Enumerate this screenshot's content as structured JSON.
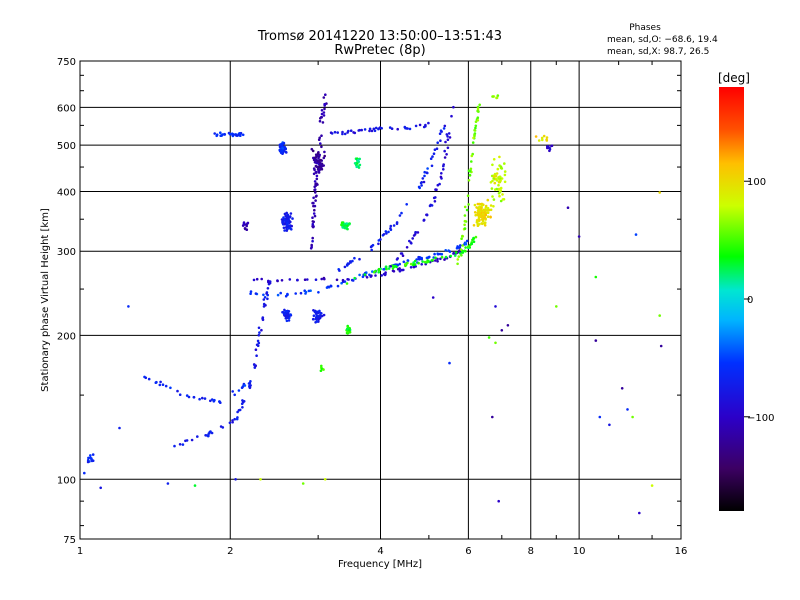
{
  "chart_data": {
    "type": "scatter",
    "title": "Tromsø 20141220 13:50:00–13:51:43",
    "subtitle": "RwPretec (8p)",
    "xlabel": "Frequency [MHz]",
    "ylabel": "Stationary phase Virtual Height [km]",
    "x_scale": "log",
    "y_scale": "log",
    "xlim": [
      1,
      16
    ],
    "ylim": [
      75,
      750
    ],
    "x_ticks": [
      1,
      2,
      4,
      6,
      8,
      10,
      16
    ],
    "y_ticks": [
      75,
      100,
      200,
      300,
      400,
      500,
      600,
      750
    ],
    "grid": true,
    "phase_info": {
      "title": "Phases",
      "line1": "mean, sd,O: −68.6, 19.4",
      "line2": "mean, sd,X:  98.7, 26.5"
    },
    "colorbar": {
      "label": "[deg]",
      "ticks": [
        100,
        0,
        -100
      ],
      "tick_labels": [
        "100",
        "0",
        "−100"
      ],
      "range": [
        -180,
        180
      ]
    },
    "traces": [
      {
        "kind": "curve",
        "pts": [
          [
            1.85,
            525
          ],
          [
            2.0,
            527
          ],
          [
            2.15,
            525
          ]
        ],
        "phase": -60,
        "density": 30
      },
      {
        "kind": "curve",
        "pts": [
          [
            1.55,
            118
          ],
          [
            1.8,
            124
          ],
          [
            2.05,
            133
          ],
          [
            2.2,
            158
          ],
          [
            2.3,
            205
          ],
          [
            2.4,
            265
          ]
        ],
        "phase": -75,
        "density": 70
      },
      {
        "kind": "curve",
        "pts": [
          [
            1.35,
            165
          ],
          [
            1.6,
            150
          ],
          [
            1.9,
            145
          ],
          [
            2.2,
            160
          ]
        ],
        "phase": -65,
        "density": 35
      },
      {
        "kind": "curve",
        "pts": [
          [
            2.2,
            245
          ],
          [
            2.6,
            244
          ],
          [
            3.0,
            248
          ],
          [
            3.4,
            258
          ],
          [
            3.8,
            270
          ],
          [
            4.2,
            278
          ],
          [
            4.6,
            286
          ],
          [
            5.0,
            292
          ],
          [
            5.5,
            300
          ],
          [
            6.0,
            315
          ]
        ],
        "phase": -55,
        "density": 90
      },
      {
        "kind": "curve",
        "pts": [
          [
            2.2,
            262
          ],
          [
            2.6,
            260
          ],
          [
            3.0,
            262
          ],
          [
            3.5,
            262
          ],
          [
            4.0,
            268
          ],
          [
            4.5,
            276
          ],
          [
            5.0,
            284
          ],
          [
            5.5,
            292
          ],
          [
            5.9,
            305
          ]
        ],
        "phase": -100,
        "density": 70
      },
      {
        "kind": "curve",
        "pts": [
          [
            3.4,
            258
          ],
          [
            3.9,
            273
          ],
          [
            4.3,
            280
          ],
          [
            4.8,
            284
          ],
          [
            5.4,
            290
          ],
          [
            5.9,
            300
          ],
          [
            6.2,
            320
          ]
        ],
        "phase": 40,
        "density": 70
      },
      {
        "kind": "curve",
        "pts": [
          [
            3.3,
            275
          ],
          [
            3.8,
            300
          ],
          [
            4.3,
            345
          ],
          [
            4.8,
            410
          ],
          [
            5.1,
            470
          ],
          [
            5.4,
            560
          ]
        ],
        "phase": -70,
        "density": 60
      },
      {
        "kind": "curve",
        "pts": [
          [
            4.0,
            265
          ],
          [
            4.5,
            300
          ],
          [
            4.9,
            350
          ],
          [
            5.2,
            400
          ],
          [
            5.4,
            480
          ],
          [
            5.6,
            600
          ]
        ],
        "phase": -90,
        "density": 50
      },
      {
        "kind": "curve",
        "pts": [
          [
            5.7,
            280
          ],
          [
            5.9,
            330
          ],
          [
            6.0,
            400
          ],
          [
            6.1,
            470
          ],
          [
            6.2,
            540
          ],
          [
            6.3,
            610
          ]
        ],
        "phase": 60,
        "density": 50
      },
      {
        "kind": "cloud",
        "c": [
          6.4,
          360
        ],
        "sx": 0.05,
        "sy": 0.08,
        "phase": 100,
        "n": 100
      },
      {
        "kind": "cloud",
        "c": [
          6.9,
          420
        ],
        "sx": 0.05,
        "sy": 0.15,
        "phase": 80,
        "n": 55
      },
      {
        "kind": "curve",
        "pts": [
          [
            2.9,
            300
          ],
          [
            2.95,
            380
          ],
          [
            3.0,
            460
          ],
          [
            3.05,
            560
          ],
          [
            3.1,
            640
          ]
        ],
        "phase": -110,
        "density": 60
      },
      {
        "kind": "cloud",
        "c": [
          3.0,
          455
        ],
        "sx": 0.04,
        "sy": 0.1,
        "phase": -120,
        "n": 60
      },
      {
        "kind": "cloud",
        "c": [
          2.55,
          490
        ],
        "sx": 0.025,
        "sy": 0.04,
        "phase": -60,
        "n": 45
      },
      {
        "kind": "cloud",
        "c": [
          2.6,
          345
        ],
        "sx": 0.03,
        "sy": 0.06,
        "phase": -70,
        "n": 60
      },
      {
        "kind": "cloud",
        "c": [
          2.6,
          220
        ],
        "sx": 0.03,
        "sy": 0.04,
        "phase": -68,
        "n": 35
      },
      {
        "kind": "cloud",
        "c": [
          3.0,
          220
        ],
        "sx": 0.04,
        "sy": 0.04,
        "phase": -75,
        "n": 35
      },
      {
        "kind": "curve",
        "pts": [
          [
            3.2,
            530
          ],
          [
            3.6,
            535
          ],
          [
            4.0,
            540
          ],
          [
            4.5,
            545
          ],
          [
            5.0,
            550
          ]
        ],
        "phase": -80,
        "density": 40
      },
      {
        "kind": "cloud",
        "c": [
          3.4,
          340
        ],
        "sx": 0.03,
        "sy": 0.025,
        "phase": 30,
        "n": 30
      },
      {
        "kind": "cloud",
        "c": [
          3.6,
          460
        ],
        "sx": 0.02,
        "sy": 0.04,
        "phase": 25,
        "n": 18
      },
      {
        "kind": "cloud",
        "c": [
          3.45,
          205
        ],
        "sx": 0.02,
        "sy": 0.025,
        "phase": 35,
        "n": 18
      },
      {
        "kind": "cloud",
        "c": [
          3.05,
          170
        ],
        "sx": 0.01,
        "sy": 0.02,
        "phase": 50,
        "n": 6
      },
      {
        "kind": "cloud",
        "c": [
          8.7,
          495
        ],
        "sx": 0.02,
        "sy": 0.03,
        "phase": -100,
        "n": 12
      },
      {
        "kind": "cloud",
        "c": [
          6.8,
          630
        ],
        "sx": 0.03,
        "sy": 0.02,
        "phase": 60,
        "n": 6
      },
      {
        "kind": "cloud",
        "c": [
          8.5,
          520
        ],
        "sx": 0.05,
        "sy": 0.03,
        "phase": 100,
        "n": 8
      },
      {
        "kind": "cloud",
        "c": [
          2.15,
          340
        ],
        "sx": 0.03,
        "sy": 0.03,
        "phase": -110,
        "n": 12
      },
      {
        "kind": "cloud",
        "c": [
          1.05,
          110
        ],
        "sx": 0.03,
        "sy": 0.03,
        "phase": -60,
        "n": 12
      }
    ],
    "scattered_points": [
      [
        1.02,
        103,
        -60
      ],
      [
        1.1,
        96,
        -80
      ],
      [
        1.2,
        128,
        -70
      ],
      [
        1.25,
        230,
        -60
      ],
      [
        1.5,
        98,
        -70
      ],
      [
        1.7,
        97,
        30
      ],
      [
        2.05,
        100,
        -80
      ],
      [
        2.3,
        100,
        80
      ],
      [
        2.8,
        98,
        60
      ],
      [
        3.1,
        100,
        80
      ],
      [
        5.1,
        240,
        -100
      ],
      [
        5.5,
        175,
        -60
      ],
      [
        6.8,
        230,
        -90
      ],
      [
        6.9,
        90,
        -100
      ],
      [
        7.0,
        205,
        -120
      ],
      [
        7.2,
        210,
        -120
      ],
      [
        6.6,
        198,
        50
      ],
      [
        6.7,
        135,
        -120
      ],
      [
        6.8,
        193,
        60
      ],
      [
        9.5,
        370,
        -110
      ],
      [
        10.0,
        322,
        -110
      ],
      [
        10.8,
        265,
        40
      ],
      [
        10.8,
        195,
        -120
      ],
      [
        11.0,
        135,
        -60
      ],
      [
        11.5,
        130,
        -80
      ],
      [
        12.2,
        155,
        -120
      ],
      [
        12.5,
        140,
        -60
      ],
      [
        12.8,
        135,
        60
      ],
      [
        13.0,
        325,
        -50
      ],
      [
        13.2,
        85,
        -100
      ],
      [
        14.0,
        97,
        80
      ],
      [
        14.5,
        220,
        60
      ],
      [
        14.6,
        190,
        -120
      ],
      [
        14.5,
        398,
        100
      ],
      [
        9.0,
        230,
        60
      ]
    ]
  }
}
